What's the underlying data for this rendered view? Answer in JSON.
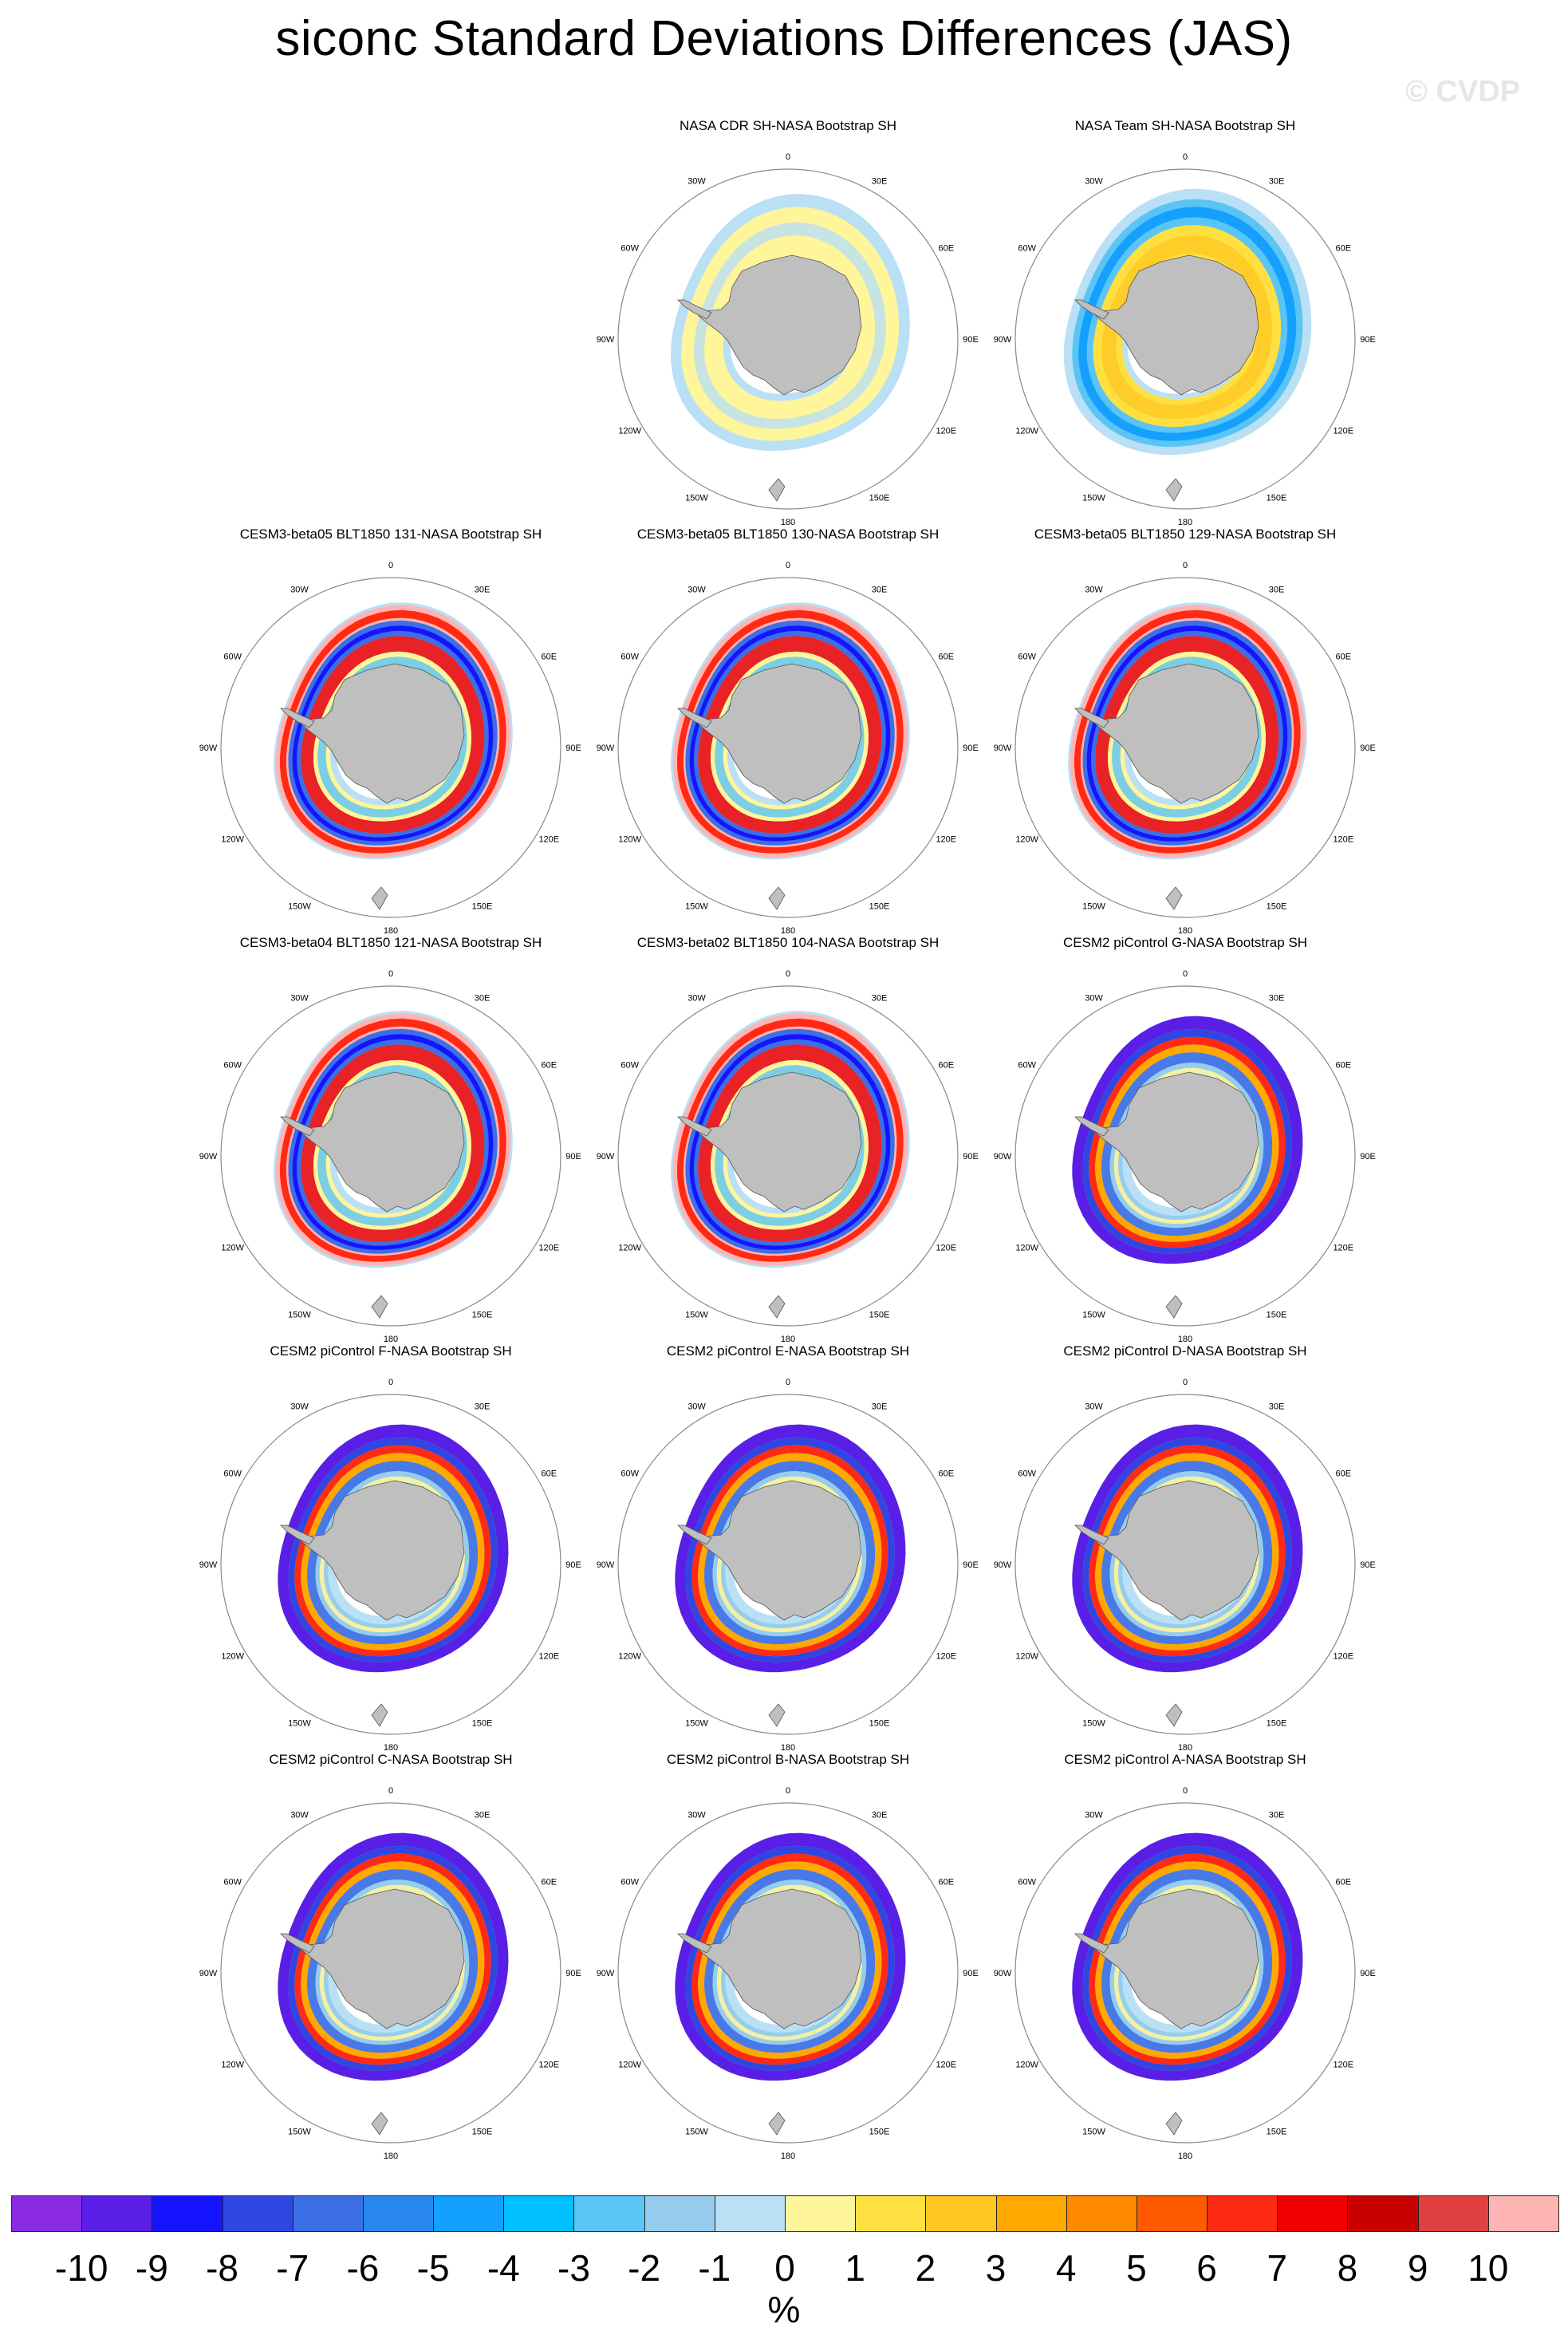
{
  "title": "siconc Standard Deviations Differences (JAS)",
  "watermark": "© CVDP",
  "units": "%",
  "longitude_labels": [
    "0",
    "30E",
    "60E",
    "90E",
    "120E",
    "150E",
    "180",
    "150W",
    "120W",
    "90W",
    "60W",
    "30W"
  ],
  "panels": [
    {
      "title": "NASA CDR SH-NASA Bootstrap SH",
      "pattern": "cdr"
    },
    {
      "title": "NASA Team SH-NASA Bootstrap SH",
      "pattern": "team"
    },
    {
      "title": "CESM3-beta05 BLT1850 131-NASA Bootstrap SH",
      "pattern": "beta"
    },
    {
      "title": "CESM3-beta05 BLT1850 130-NASA Bootstrap SH",
      "pattern": "beta"
    },
    {
      "title": "CESM3-beta05 BLT1850 129-NASA Bootstrap SH",
      "pattern": "beta"
    },
    {
      "title": "CESM3-beta04 BLT1850 121-NASA Bootstrap SH",
      "pattern": "beta"
    },
    {
      "title": "CESM3-beta02 BLT1850 104-NASA Bootstrap SH",
      "pattern": "beta"
    },
    {
      "title": "CESM2 piControl G-NASA Bootstrap SH",
      "pattern": "cesm2"
    },
    {
      "title": "CESM2 piControl F-NASA Bootstrap SH",
      "pattern": "cesm2"
    },
    {
      "title": "CESM2 piControl E-NASA Bootstrap SH",
      "pattern": "cesm2"
    },
    {
      "title": "CESM2 piControl D-NASA Bootstrap SH",
      "pattern": "cesm2"
    },
    {
      "title": "CESM2 piControl C-NASA Bootstrap SH",
      "pattern": "cesm2"
    },
    {
      "title": "CESM2 piControl B-NASA Bootstrap SH",
      "pattern": "cesm2"
    },
    {
      "title": "CESM2 piControl A-NASA Bootstrap SH",
      "pattern": "cesm2"
    }
  ],
  "colorbar": {
    "labels": [
      "-10",
      "-9",
      "-8",
      "-7",
      "-6",
      "-5",
      "-4",
      "-3",
      "-2",
      "-1",
      "0",
      "1",
      "2",
      "3",
      "4",
      "5",
      "6",
      "7",
      "8",
      "9",
      "10"
    ],
    "colors": [
      "#8a2be2",
      "#5a1fe6",
      "#1414ff",
      "#3046e0",
      "#3c6ee6",
      "#2888f0",
      "#14a0ff",
      "#00c0ff",
      "#5ac4f5",
      "#96cdee",
      "#b9e0f5",
      "#fff59a",
      "#ffe040",
      "#ffc820",
      "#ffa800",
      "#ff8a00",
      "#ff5a00",
      "#ff2a14",
      "#f00000",
      "#c80000",
      "#e04040",
      "#ffb4b4"
    ]
  }
}
